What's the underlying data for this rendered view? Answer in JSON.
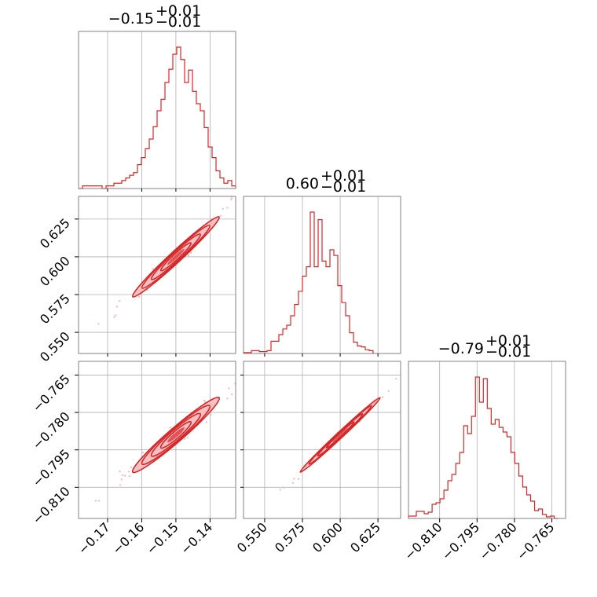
{
  "chart_data": {
    "type": "corner",
    "color": "#d62728",
    "panel_titles": [
      {
        "main": "−0.15",
        "sup": "+0.01",
        "sub": "−0.01"
      },
      {
        "main": "0.60",
        "sup": "+0.01",
        "sub": "−0.01"
      },
      {
        "main": "−0.79",
        "sup": "+0.01",
        "sub": "−0.01"
      }
    ],
    "parameters": [
      {
        "range": [
          -0.1785,
          -0.1325
        ],
        "ticks": [
          -0.17,
          -0.16,
          -0.15,
          -0.14
        ],
        "tick_labels": [
          "−0.17",
          "−0.16",
          "−0.15",
          "−0.14"
        ],
        "median": -0.15,
        "sigma": 0.0055
      },
      {
        "range": [
          0.536,
          0.64
        ],
        "ticks": [
          0.55,
          0.575,
          0.6,
          0.625
        ],
        "tick_labels": [
          "0.550",
          "0.575",
          "0.600",
          "0.625"
        ],
        "median": 0.6,
        "sigma": 0.0115
      },
      {
        "range": [
          -0.8225,
          -0.7595
        ],
        "ticks": [
          -0.81,
          -0.795,
          -0.78,
          -0.765
        ],
        "tick_labels": [
          "−0.810",
          "−0.795",
          "−0.780",
          "−0.765"
        ],
        "median": -0.789,
        "sigma": 0.0065
      }
    ],
    "histograms": [
      {
        "x0": -0.1785,
        "dx": 0.00115,
        "counts": [
          0,
          3,
          3,
          3,
          3,
          3,
          0,
          3,
          3,
          6,
          6,
          9,
          12,
          15,
          18,
          27,
          35,
          45,
          56,
          70,
          88,
          101,
          120,
          135,
          152,
          160,
          146,
          120,
          134,
          110,
          96,
          88,
          69,
          47,
          35,
          20,
          12,
          6,
          9,
          3
        ]
      },
      {
        "x0": 0.536,
        "dx": 0.0026,
        "counts": [
          1,
          1,
          3,
          3,
          2,
          2,
          3,
          13,
          13,
          20,
          26,
          30,
          40,
          52,
          66,
          82,
          92,
          150,
          92,
          142,
          98,
          92,
          110,
          104,
          72,
          54,
          40,
          22,
          12,
          8,
          7,
          4,
          3
        ]
      },
      {
        "x0": -0.8225,
        "dx": 0.00158,
        "counts": [
          3,
          3,
          9,
          9,
          6,
          8,
          18,
          20,
          25,
          36,
          48,
          56,
          70,
          84,
          118,
          108,
          130,
          180,
          148,
          178,
          140,
          120,
          126,
          116,
          110,
          104,
          84,
          70,
          54,
          40,
          30,
          22,
          10,
          12,
          5,
          2,
          3,
          0
        ]
      }
    ],
    "correlations": {
      "1_0": 0.97,
      "2_0": 0.95,
      "2_1": 0.99
    },
    "grid": true
  }
}
